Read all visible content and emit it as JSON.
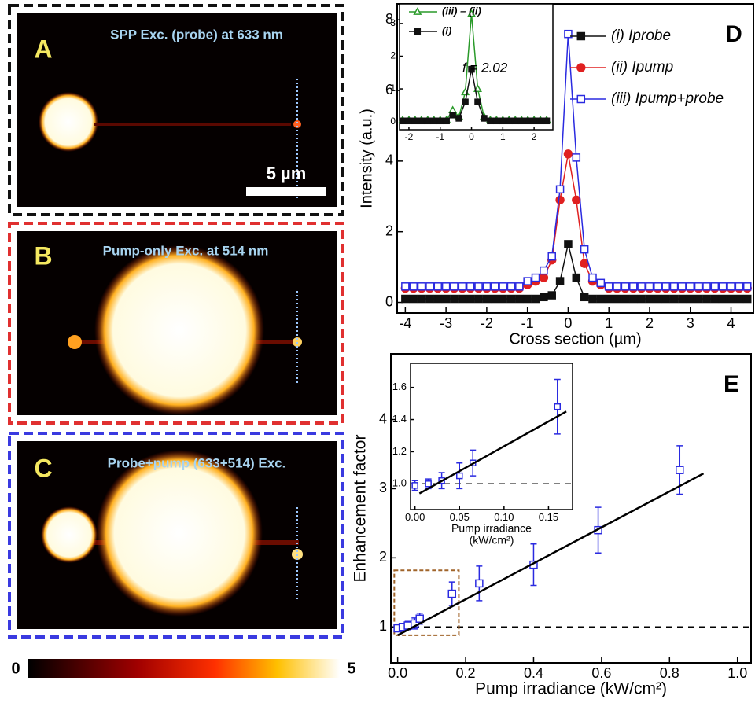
{
  "image_panels": [
    {
      "letter": "A",
      "caption": "SPP Exc. (probe) at 633 nm",
      "border": "#111111"
    },
    {
      "letter": "B",
      "caption": "Pump-only Exc. at 514 nm",
      "border": "#e03030"
    },
    {
      "letter": "C",
      "caption": "Probe+pump (633+514) Exc.",
      "border": "#3a3ae0"
    }
  ],
  "scale_bar": "5 µm",
  "colorbar": {
    "range": [
      0,
      5
    ]
  },
  "chart_data": [
    {
      "type": "line",
      "panel": "D",
      "x_label": "Cross section (µm)",
      "y_label": "Intensity (a.u.)",
      "xlim": [
        -4.2,
        4.55
      ],
      "ylim": [
        -0.3,
        8.45
      ],
      "xticks": [
        -4,
        -3,
        -2,
        -1,
        0,
        1,
        2,
        3,
        4
      ],
      "yticks": [
        0,
        2,
        4,
        6,
        8
      ],
      "x": [
        -4,
        -3.8,
        -3.6,
        -3.4,
        -3.2,
        -3,
        -2.8,
        -2.6,
        -2.4,
        -2.2,
        -2,
        -1.8,
        -1.6,
        -1.4,
        -1.2,
        -1,
        -0.8,
        -0.6,
        -0.4,
        -0.2,
        0,
        0.2,
        0.4,
        0.6,
        0.8,
        1,
        1.2,
        1.4,
        1.6,
        1.8,
        2,
        2.2,
        2.4,
        2.6,
        2.8,
        3,
        3.2,
        3.4,
        3.6,
        3.8,
        4,
        4.2,
        4.4
      ],
      "legend": true,
      "series": [
        {
          "name": "(i) Iprobe",
          "color": "#111111",
          "marker": "square",
          "fill": "filled",
          "values": [
            0.1,
            0.1,
            0.1,
            0.1,
            0.1,
            0.1,
            0.1,
            0.1,
            0.1,
            0.1,
            0.1,
            0.1,
            0.1,
            0.1,
            0.1,
            0.1,
            0.1,
            0.15,
            0.2,
            0.6,
            1.65,
            0.7,
            0.15,
            0.1,
            0.1,
            0.1,
            0.1,
            0.1,
            0.1,
            0.1,
            0.1,
            0.1,
            0.1,
            0.1,
            0.1,
            0.1,
            0.1,
            0.1,
            0.1,
            0.1,
            0.1,
            0.1,
            0.1
          ]
        },
        {
          "name": "(ii) Ipump",
          "color": "#e02020",
          "marker": "circle",
          "fill": "filled",
          "values": [
            0.4,
            0.4,
            0.4,
            0.4,
            0.4,
            0.4,
            0.4,
            0.4,
            0.4,
            0.4,
            0.4,
            0.4,
            0.4,
            0.4,
            0.4,
            0.5,
            0.6,
            0.7,
            1.2,
            2.9,
            4.2,
            2.9,
            1.1,
            0.6,
            0.5,
            0.4,
            0.4,
            0.4,
            0.4,
            0.4,
            0.4,
            0.4,
            0.4,
            0.4,
            0.4,
            0.4,
            0.4,
            0.4,
            0.4,
            0.4,
            0.4,
            0.4,
            0.4
          ]
        },
        {
          "name": "(iii) Ipump+probe",
          "color": "#2a2ae0",
          "marker": "square",
          "fill": "open",
          "values": [
            0.45,
            0.45,
            0.45,
            0.45,
            0.45,
            0.45,
            0.45,
            0.45,
            0.45,
            0.45,
            0.45,
            0.45,
            0.45,
            0.45,
            0.45,
            0.6,
            0.7,
            0.9,
            1.3,
            3.2,
            7.6,
            4.1,
            1.5,
            0.7,
            0.55,
            0.45,
            0.45,
            0.45,
            0.45,
            0.45,
            0.45,
            0.45,
            0.45,
            0.45,
            0.45,
            0.45,
            0.45,
            0.45,
            0.45,
            0.45,
            0.45,
            0.45,
            0.45
          ]
        }
      ]
    },
    {
      "type": "line",
      "annotation": "f = 2.02",
      "xlim": [
        -2.3,
        2.6
      ],
      "ylim": [
        -0.25,
        3.6
      ],
      "xticks": [
        -2,
        -1,
        0,
        1,
        2
      ],
      "yticks": [
        0,
        1,
        2,
        3
      ],
      "x": [
        -2.2,
        -2,
        -1.8,
        -1.6,
        -1.4,
        -1.2,
        -1,
        -0.8,
        -0.6,
        -0.4,
        -0.2,
        0,
        0.2,
        0.4,
        0.6,
        0.8,
        1,
        1.2,
        1.4,
        1.6,
        1.8,
        2,
        2.2,
        2.4
      ],
      "legend": true,
      "series": [
        {
          "name": "(iii) – (ii)",
          "color": "#2a9a2a",
          "marker": "triangle",
          "fill": "open",
          "values": [
            0.05,
            0.05,
            0.05,
            0.05,
            0.05,
            0.05,
            0.05,
            0.05,
            0.35,
            0.15,
            0.9,
            3.3,
            1.0,
            0.15,
            0.05,
            0.05,
            0.05,
            0.05,
            0.05,
            0.05,
            0.05,
            0.05,
            0.05,
            0.05
          ]
        },
        {
          "name": "(i)",
          "color": "#111111",
          "marker": "square",
          "fill": "filled",
          "values": [
            0.02,
            0.02,
            0.02,
            0.02,
            0.02,
            0.02,
            0.02,
            0.02,
            0.2,
            0.1,
            0.6,
            1.6,
            0.6,
            0.1,
            0.02,
            0.02,
            0.02,
            0.02,
            0.02,
            0.02,
            0.02,
            0.02,
            0.02,
            0.02
          ]
        }
      ]
    },
    {
      "type": "scatter",
      "panel": "E",
      "x_label": "Pump irradiance (kW/cm²)",
      "y_label": "Enhancement factor",
      "xlim": [
        -0.02,
        1.04
      ],
      "ylim": [
        0.48,
        4.95
      ],
      "xticks": [
        {
          "value": 0,
          "label": "0.0"
        },
        0.2,
        0.4,
        0.6,
        0.8,
        {
          "value": 1,
          "label": "1.0"
        }
      ],
      "yticks": [
        1,
        2,
        3,
        4
      ],
      "hline": 1,
      "zoom_box": {
        "xlim": [
          -0.01,
          0.18
        ],
        "ylim": [
          0.88,
          1.82
        ]
      },
      "series": [
        {
          "color": "#2a2ae0",
          "marker": "square",
          "fill": "open",
          "x": [
            0,
            0.015,
            0.03,
            0.05,
            0.065,
            0.16,
            0.24,
            0.4,
            0.59,
            0.83
          ],
          "values": [
            0.98,
            1.0,
            1.02,
            1.05,
            1.12,
            1.48,
            1.63,
            1.9,
            2.4,
            3.27
          ],
          "errors": [
            0.04,
            0.05,
            0.06,
            0.08,
            0.08,
            0.17,
            0.25,
            0.3,
            0.33,
            0.35
          ]
        },
        {
          "color": "#000000",
          "style": "fit",
          "x": [
            0,
            0.9
          ],
          "values": [
            0.88,
            3.22
          ]
        }
      ]
    },
    {
      "type": "scatter",
      "x_label": [
        "Pump irradiance",
        "(kW/cm²)"
      ],
      "xlim": [
        -0.005,
        0.177
      ],
      "ylim": [
        0.84,
        1.75
      ],
      "xticks": [
        {
          "value": 0,
          "label": "0.00"
        },
        {
          "value": 0.05,
          "label": "0.05"
        },
        {
          "value": 0.1,
          "label": "0.10"
        },
        {
          "value": 0.15,
          "label": "0.15"
        }
      ],
      "yticks": [
        {
          "value": 1,
          "label": "1.0"
        },
        1.2,
        1.4,
        1.6
      ],
      "hline": 1,
      "series": [
        {
          "color": "#2a2ae0",
          "marker": "square",
          "fill": "open",
          "x": [
            0,
            0.015,
            0.03,
            0.05,
            0.065,
            0.16
          ],
          "values": [
            0.99,
            1.0,
            1.02,
            1.05,
            1.13,
            1.48
          ],
          "errors": [
            0.03,
            0.03,
            0.05,
            0.08,
            0.08,
            0.17
          ]
        },
        {
          "color": "#000000",
          "style": "fit",
          "x": [
            0.005,
            0.17
          ],
          "values": [
            0.94,
            1.45
          ]
        }
      ]
    }
  ]
}
